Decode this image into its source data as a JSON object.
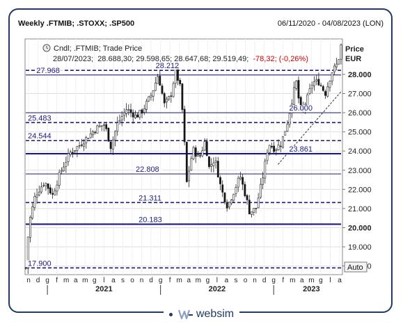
{
  "header": {
    "title": "Weekly .FTMIB; .STOXX; .SP500",
    "date_range": "06/11/2020 - 04/08/2023 (LON)"
  },
  "legend": {
    "line1": "Cndl; .FTMIB; Trade Price",
    "date": "28/07/2023;",
    "ohlc": "28.688,30; 29.598,65; 28.647,68; 29.519,49;",
    "change": "-78,32; (-0,26%)",
    "change_color": "#cc0000"
  },
  "axis": {
    "price_label": "Price",
    "currency": "EUR",
    "auto_button": "Auto",
    "ticks": [
      "28.000",
      "27.000",
      "26.000",
      "25.000",
      "24.000",
      "23.000",
      "22.000",
      "21.000",
      "20.000",
      "19.000",
      "18.000"
    ],
    "highlight_ticks": [
      "28.000",
      "20.000"
    ],
    "month_letters": [
      "n",
      "d",
      "g",
      "f",
      "m",
      "a",
      "m",
      "g",
      "l",
      "a",
      "s",
      "o",
      "n",
      "d",
      "g",
      "f",
      "m",
      "a",
      "m",
      "g",
      "l",
      "a",
      "s",
      "o",
      "n",
      "d",
      "g",
      "f",
      "m",
      "a",
      "m",
      "g",
      "l",
      "a"
    ],
    "years": [
      "2021",
      "2022",
      "2023"
    ]
  },
  "colors": {
    "frame": "#1f3a66",
    "candle_up": "#ffffff",
    "candle_down": "#111111",
    "level_line": "#1a1a80",
    "label": "#1a1a80"
  },
  "chart_data": {
    "type": "candlestick",
    "ylim": [
      17.55,
      29.85
    ],
    "levels": [
      {
        "value": 28.212,
        "label": "28.212",
        "style": "dashed",
        "label_pos": 0.45
      },
      {
        "value": 27.968,
        "label": "27.968",
        "style": "solid",
        "label_pos": 0.03
      },
      {
        "value": 26.0,
        "label": "26.000",
        "style": "solid",
        "label_pos": 0.92
      },
      {
        "value": 25.483,
        "label": "25.483",
        "style": "dashed",
        "label_pos": 0.0
      },
      {
        "value": 24.544,
        "label": "24.544",
        "style": "dashed",
        "label_pos": 0.0
      },
      {
        "value": 23.861,
        "label": "23.861",
        "style": "thick",
        "label_pos": 0.92
      },
      {
        "value": 22.808,
        "label": "22.808",
        "style": "solid",
        "label_pos": 0.38
      },
      {
        "value": 21.311,
        "label": "21.311",
        "style": "dashed",
        "label_pos": 0.39
      },
      {
        "value": 20.183,
        "label": "20.183",
        "style": "thick",
        "label_pos": 0.39
      },
      {
        "value": 17.9,
        "label": "17.900",
        "style": "dashed",
        "label_pos": 0.0
      }
    ],
    "trendline": {
      "from": [
        0.8,
        23.3
      ],
      "to": [
        1.0,
        27.1
      ]
    },
    "path": [
      [
        0.0,
        17.9
      ],
      [
        0.01,
        20.2
      ],
      [
        0.03,
        21.7
      ],
      [
        0.06,
        22.4
      ],
      [
        0.085,
        21.7
      ],
      [
        0.11,
        22.9
      ],
      [
        0.14,
        23.9
      ],
      [
        0.17,
        24.3
      ],
      [
        0.2,
        24.8
      ],
      [
        0.225,
        25.2
      ],
      [
        0.25,
        25.4
      ],
      [
        0.27,
        24.2
      ],
      [
        0.29,
        25.4
      ],
      [
        0.32,
        26.2
      ],
      [
        0.35,
        25.8
      ],
      [
        0.37,
        26.1
      ],
      [
        0.4,
        27.0
      ],
      [
        0.42,
        28.0
      ],
      [
        0.44,
        26.4
      ],
      [
        0.46,
        26.9
      ],
      [
        0.475,
        28.2
      ],
      [
        0.49,
        27.3
      ],
      [
        0.5,
        25.5
      ],
      [
        0.51,
        22.3
      ],
      [
        0.53,
        24.1
      ],
      [
        0.55,
        23.6
      ],
      [
        0.57,
        24.6
      ],
      [
        0.58,
        23.1
      ],
      [
        0.6,
        23.6
      ],
      [
        0.62,
        22.0
      ],
      [
        0.64,
        21.1
      ],
      [
        0.66,
        21.9
      ],
      [
        0.68,
        22.7
      ],
      [
        0.7,
        21.5
      ],
      [
        0.71,
        20.8
      ],
      [
        0.73,
        21.0
      ],
      [
        0.75,
        22.5
      ],
      [
        0.77,
        24.4
      ],
      [
        0.79,
        24.1
      ],
      [
        0.81,
        24.4
      ],
      [
        0.83,
        25.5
      ],
      [
        0.85,
        27.1
      ],
      [
        0.86,
        27.7
      ],
      [
        0.87,
        25.9
      ],
      [
        0.89,
        26.6
      ],
      [
        0.91,
        27.6
      ],
      [
        0.93,
        27.6
      ],
      [
        0.95,
        27.0
      ],
      [
        0.97,
        28.1
      ],
      [
        0.99,
        28.6
      ],
      [
        1.0,
        29.5
      ]
    ]
  }
}
